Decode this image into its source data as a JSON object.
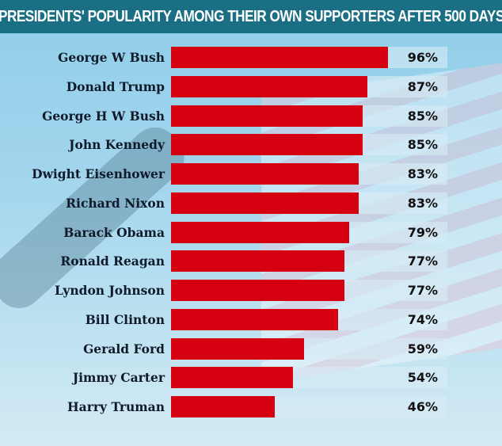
{
  "chart_data": {
    "type": "bar",
    "orientation": "horizontal",
    "title": "PRESIDENTS' POPULARITY AMONG THEIR OWN SUPPORTERS AFTER 500 DAYS",
    "xlabel": "",
    "ylabel": "",
    "xlim": [
      0,
      100
    ],
    "grid": false,
    "value_suffix": "%",
    "categories": [
      "George W Bush",
      "Donald Trump",
      "George H W Bush",
      "John Kennedy",
      "Dwight Eisenhower",
      "Richard Nixon",
      "Barack Obama",
      "Ronald Reagan",
      "Lyndon Johnson",
      "Bill Clinton",
      "Gerald Ford",
      "Jimmy Carter",
      "Harry Truman"
    ],
    "values": [
      96,
      87,
      85,
      85,
      83,
      83,
      79,
      77,
      77,
      74,
      59,
      54,
      46
    ],
    "labels": [
      "96%",
      "87%",
      "85%",
      "85%",
      "83%",
      "83%",
      "79%",
      "77%",
      "77%",
      "74%",
      "59%",
      "54%",
      "46%"
    ],
    "colors": {
      "bar": "#d50010",
      "header": "#1a6f84"
    }
  }
}
